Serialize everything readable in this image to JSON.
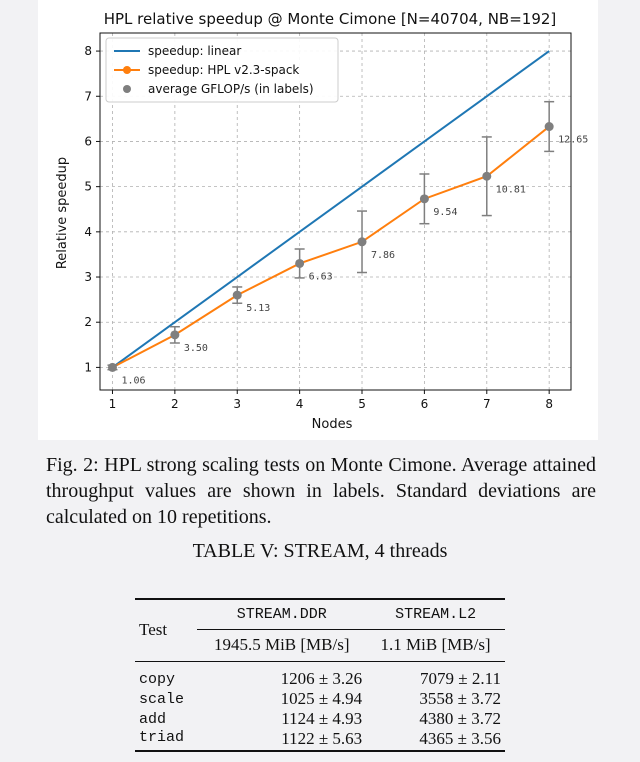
{
  "chart_data": {
    "type": "line",
    "title": "HPL relative speedup @ Monte Cimone [N=40704, NB=192]",
    "xlabel": "Nodes",
    "ylabel": "Relative speedup",
    "x": [
      1,
      2,
      3,
      4,
      5,
      6,
      7,
      8
    ],
    "xlim": [
      0.8,
      8.35
    ],
    "ylim": [
      0.5,
      8.4
    ],
    "xticks": [
      1,
      2,
      3,
      4,
      5,
      6,
      7,
      8
    ],
    "yticks": [
      1,
      2,
      3,
      4,
      5,
      6,
      7,
      8
    ],
    "grid": true,
    "legend_position": "top-left",
    "series": [
      {
        "name": "speedup: linear",
        "values": [
          1,
          2,
          3,
          4,
          5,
          6,
          7,
          8
        ],
        "color": "#1f77b4"
      },
      {
        "name": "speedup: HPL v2.3-spack",
        "values": [
          1.0,
          1.72,
          2.6,
          3.3,
          3.78,
          4.73,
          5.23,
          6.33
        ],
        "color": "#ff7f0e"
      }
    ],
    "error_bars": [
      0.05,
      0.18,
      0.18,
      0.32,
      0.68,
      0.55,
      0.87,
      0.55
    ],
    "marker_legend": "average GFLOP/s (in labels)",
    "marker_color": "#7f7f7f",
    "point_labels": [
      "1.06",
      "3.50",
      "5.13",
      "6.63",
      "7.86",
      "9.54",
      "10.81",
      "12.65"
    ]
  },
  "caption": "Fig. 2: HPL strong scaling tests on Monte Cimone. Average attained throughput values are shown in labels. Standard deviations are calculated on 10 repetitions.",
  "table": {
    "title": "TABLE V: STREAM, 4 threads",
    "test_header": "Test",
    "col1": "STREAM.DDR",
    "col2": "STREAM.L2",
    "col1_sub": "1945.5 MiB [MB/s]",
    "col2_sub": "1.1 MiB [MB/s]",
    "rows": [
      {
        "test": "copy",
        "ddr": "1206 ± 3.26",
        "l2": "7079 ± 2.11"
      },
      {
        "test": "scale",
        "ddr": "1025 ± 4.94",
        "l2": "3558 ± 3.72"
      },
      {
        "test": "add",
        "ddr": "1124 ± 4.93",
        "l2": "4380 ± 3.72"
      },
      {
        "test": "triad",
        "ddr": "1122 ± 5.63",
        "l2": "4365 ± 3.56"
      }
    ]
  }
}
